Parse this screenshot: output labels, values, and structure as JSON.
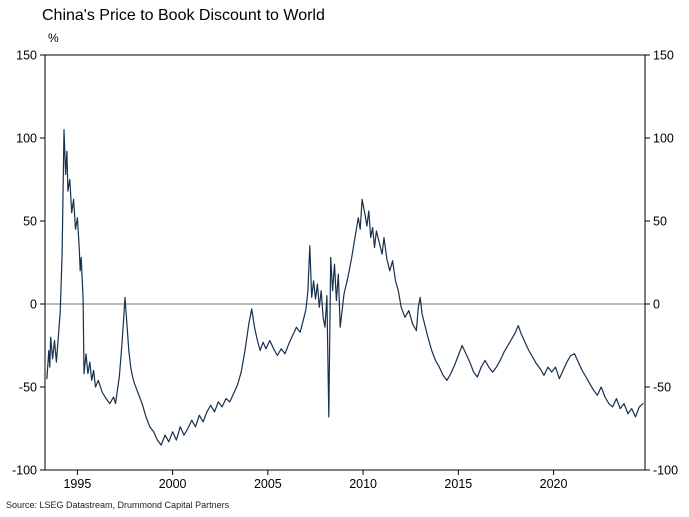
{
  "chart_data": {
    "type": "line",
    "title": "China's Price to Book Discount to World",
    "unit_label": "%",
    "xlabel": "",
    "ylabel": "",
    "ylim": [
      -100,
      150
    ],
    "yticks": [
      150,
      100,
      50,
      0,
      -50,
      -100
    ],
    "xlim": [
      1993.3,
      2024.8
    ],
    "xticks": [
      1995,
      2000,
      2005,
      2010,
      2015,
      2020
    ],
    "zero_line": true,
    "grid": false,
    "legend": "none",
    "line_color": "#16304e",
    "source": "Source: LSEG Datastream, Drummond Capital Partners",
    "series": [
      {
        "name": "China price-to-book discount to world (%)",
        "points": [
          [
            1993.4,
            -45
          ],
          [
            1993.5,
            -28
          ],
          [
            1993.55,
            -38
          ],
          [
            1993.6,
            -20
          ],
          [
            1993.7,
            -33
          ],
          [
            1993.8,
            -22
          ],
          [
            1993.9,
            -35
          ],
          [
            1994.0,
            -20
          ],
          [
            1994.1,
            -5
          ],
          [
            1994.2,
            30
          ],
          [
            1994.3,
            105
          ],
          [
            1994.38,
            78
          ],
          [
            1994.45,
            92
          ],
          [
            1994.5,
            68
          ],
          [
            1994.6,
            75
          ],
          [
            1994.7,
            55
          ],
          [
            1994.8,
            63
          ],
          [
            1994.9,
            45
          ],
          [
            1995.0,
            52
          ],
          [
            1995.1,
            33
          ],
          [
            1995.15,
            20
          ],
          [
            1995.2,
            28
          ],
          [
            1995.3,
            3
          ],
          [
            1995.35,
            -42
          ],
          [
            1995.45,
            -30
          ],
          [
            1995.55,
            -42
          ],
          [
            1995.65,
            -35
          ],
          [
            1995.75,
            -46
          ],
          [
            1995.85,
            -40
          ],
          [
            1995.95,
            -50
          ],
          [
            1996.1,
            -46
          ],
          [
            1996.3,
            -53
          ],
          [
            1996.5,
            -57
          ],
          [
            1996.7,
            -60
          ],
          [
            1996.9,
            -56
          ],
          [
            1997.0,
            -60
          ],
          [
            1997.1,
            -52
          ],
          [
            1997.2,
            -44
          ],
          [
            1997.3,
            -30
          ],
          [
            1997.4,
            -14
          ],
          [
            1997.5,
            4
          ],
          [
            1997.6,
            -12
          ],
          [
            1997.7,
            -28
          ],
          [
            1997.8,
            -38
          ],
          [
            1997.9,
            -44
          ],
          [
            1998.0,
            -48
          ],
          [
            1998.2,
            -54
          ],
          [
            1998.4,
            -60
          ],
          [
            1998.6,
            -68
          ],
          [
            1998.8,
            -74
          ],
          [
            1999.0,
            -77
          ],
          [
            1999.2,
            -82
          ],
          [
            1999.4,
            -85
          ],
          [
            1999.6,
            -79
          ],
          [
            1999.8,
            -83
          ],
          [
            2000.0,
            -77
          ],
          [
            2000.2,
            -82
          ],
          [
            2000.4,
            -74
          ],
          [
            2000.6,
            -79
          ],
          [
            2000.8,
            -75
          ],
          [
            2001.0,
            -70
          ],
          [
            2001.2,
            -74
          ],
          [
            2001.4,
            -67
          ],
          [
            2001.6,
            -71
          ],
          [
            2001.8,
            -65
          ],
          [
            2002.0,
            -61
          ],
          [
            2002.2,
            -65
          ],
          [
            2002.4,
            -59
          ],
          [
            2002.6,
            -62
          ],
          [
            2002.8,
            -57
          ],
          [
            2003.0,
            -59
          ],
          [
            2003.2,
            -54
          ],
          [
            2003.4,
            -49
          ],
          [
            2003.6,
            -41
          ],
          [
            2003.8,
            -28
          ],
          [
            2004.0,
            -12
          ],
          [
            2004.15,
            -3
          ],
          [
            2004.3,
            -14
          ],
          [
            2004.45,
            -22
          ],
          [
            2004.6,
            -28
          ],
          [
            2004.75,
            -23
          ],
          [
            2004.9,
            -27
          ],
          [
            2005.1,
            -22
          ],
          [
            2005.3,
            -27
          ],
          [
            2005.5,
            -31
          ],
          [
            2005.7,
            -27
          ],
          [
            2005.9,
            -30
          ],
          [
            2006.1,
            -24
          ],
          [
            2006.3,
            -19
          ],
          [
            2006.5,
            -14
          ],
          [
            2006.7,
            -17
          ],
          [
            2006.9,
            -8
          ],
          [
            2007.0,
            -3
          ],
          [
            2007.1,
            8
          ],
          [
            2007.2,
            35
          ],
          [
            2007.3,
            4
          ],
          [
            2007.4,
            14
          ],
          [
            2007.5,
            3
          ],
          [
            2007.6,
            12
          ],
          [
            2007.7,
            -2
          ],
          [
            2007.8,
            8
          ],
          [
            2007.9,
            -8
          ],
          [
            2008.0,
            -14
          ],
          [
            2008.1,
            5
          ],
          [
            2008.2,
            -68
          ],
          [
            2008.3,
            28
          ],
          [
            2008.4,
            8
          ],
          [
            2008.5,
            24
          ],
          [
            2008.6,
            2
          ],
          [
            2008.7,
            18
          ],
          [
            2008.8,
            -14
          ],
          [
            2008.9,
            -4
          ],
          [
            2009.0,
            6
          ],
          [
            2009.2,
            16
          ],
          [
            2009.4,
            28
          ],
          [
            2009.6,
            42
          ],
          [
            2009.75,
            52
          ],
          [
            2009.85,
            45
          ],
          [
            2009.95,
            63
          ],
          [
            2010.1,
            54
          ],
          [
            2010.2,
            47
          ],
          [
            2010.3,
            56
          ],
          [
            2010.4,
            40
          ],
          [
            2010.5,
            46
          ],
          [
            2010.6,
            34
          ],
          [
            2010.7,
            44
          ],
          [
            2010.85,
            37
          ],
          [
            2011.0,
            30
          ],
          [
            2011.1,
            40
          ],
          [
            2011.25,
            27
          ],
          [
            2011.4,
            20
          ],
          [
            2011.55,
            26
          ],
          [
            2011.7,
            14
          ],
          [
            2011.85,
            8
          ],
          [
            2012.0,
            -2
          ],
          [
            2012.2,
            -8
          ],
          [
            2012.4,
            -4
          ],
          [
            2012.6,
            -12
          ],
          [
            2012.8,
            -16
          ],
          [
            2012.9,
            -2
          ],
          [
            2013.0,
            4
          ],
          [
            2013.1,
            -6
          ],
          [
            2013.25,
            -13
          ],
          [
            2013.4,
            -20
          ],
          [
            2013.6,
            -28
          ],
          [
            2013.8,
            -34
          ],
          [
            2014.0,
            -38
          ],
          [
            2014.2,
            -43
          ],
          [
            2014.4,
            -46
          ],
          [
            2014.6,
            -42
          ],
          [
            2014.8,
            -37
          ],
          [
            2015.0,
            -31
          ],
          [
            2015.2,
            -25
          ],
          [
            2015.4,
            -30
          ],
          [
            2015.6,
            -35
          ],
          [
            2015.8,
            -41
          ],
          [
            2016.0,
            -44
          ],
          [
            2016.2,
            -38
          ],
          [
            2016.4,
            -34
          ],
          [
            2016.6,
            -38
          ],
          [
            2016.8,
            -41
          ],
          [
            2017.0,
            -38
          ],
          [
            2017.2,
            -34
          ],
          [
            2017.4,
            -29
          ],
          [
            2017.6,
            -25
          ],
          [
            2017.8,
            -21
          ],
          [
            2018.0,
            -17
          ],
          [
            2018.15,
            -13
          ],
          [
            2018.3,
            -18
          ],
          [
            2018.5,
            -23
          ],
          [
            2018.7,
            -28
          ],
          [
            2018.9,
            -32
          ],
          [
            2019.1,
            -36
          ],
          [
            2019.3,
            -39
          ],
          [
            2019.5,
            -43
          ],
          [
            2019.7,
            -38
          ],
          [
            2019.9,
            -41
          ],
          [
            2020.1,
            -38
          ],
          [
            2020.3,
            -45
          ],
          [
            2020.5,
            -40
          ],
          [
            2020.7,
            -35
          ],
          [
            2020.9,
            -31
          ],
          [
            2021.1,
            -30
          ],
          [
            2021.3,
            -35
          ],
          [
            2021.5,
            -40
          ],
          [
            2021.7,
            -44
          ],
          [
            2021.9,
            -48
          ],
          [
            2022.1,
            -52
          ],
          [
            2022.3,
            -55
          ],
          [
            2022.5,
            -50
          ],
          [
            2022.7,
            -56
          ],
          [
            2022.9,
            -60
          ],
          [
            2023.1,
            -62
          ],
          [
            2023.3,
            -57
          ],
          [
            2023.5,
            -63
          ],
          [
            2023.7,
            -60
          ],
          [
            2023.9,
            -66
          ],
          [
            2024.1,
            -63
          ],
          [
            2024.3,
            -68
          ],
          [
            2024.5,
            -62
          ],
          [
            2024.7,
            -60
          ]
        ]
      }
    ]
  }
}
